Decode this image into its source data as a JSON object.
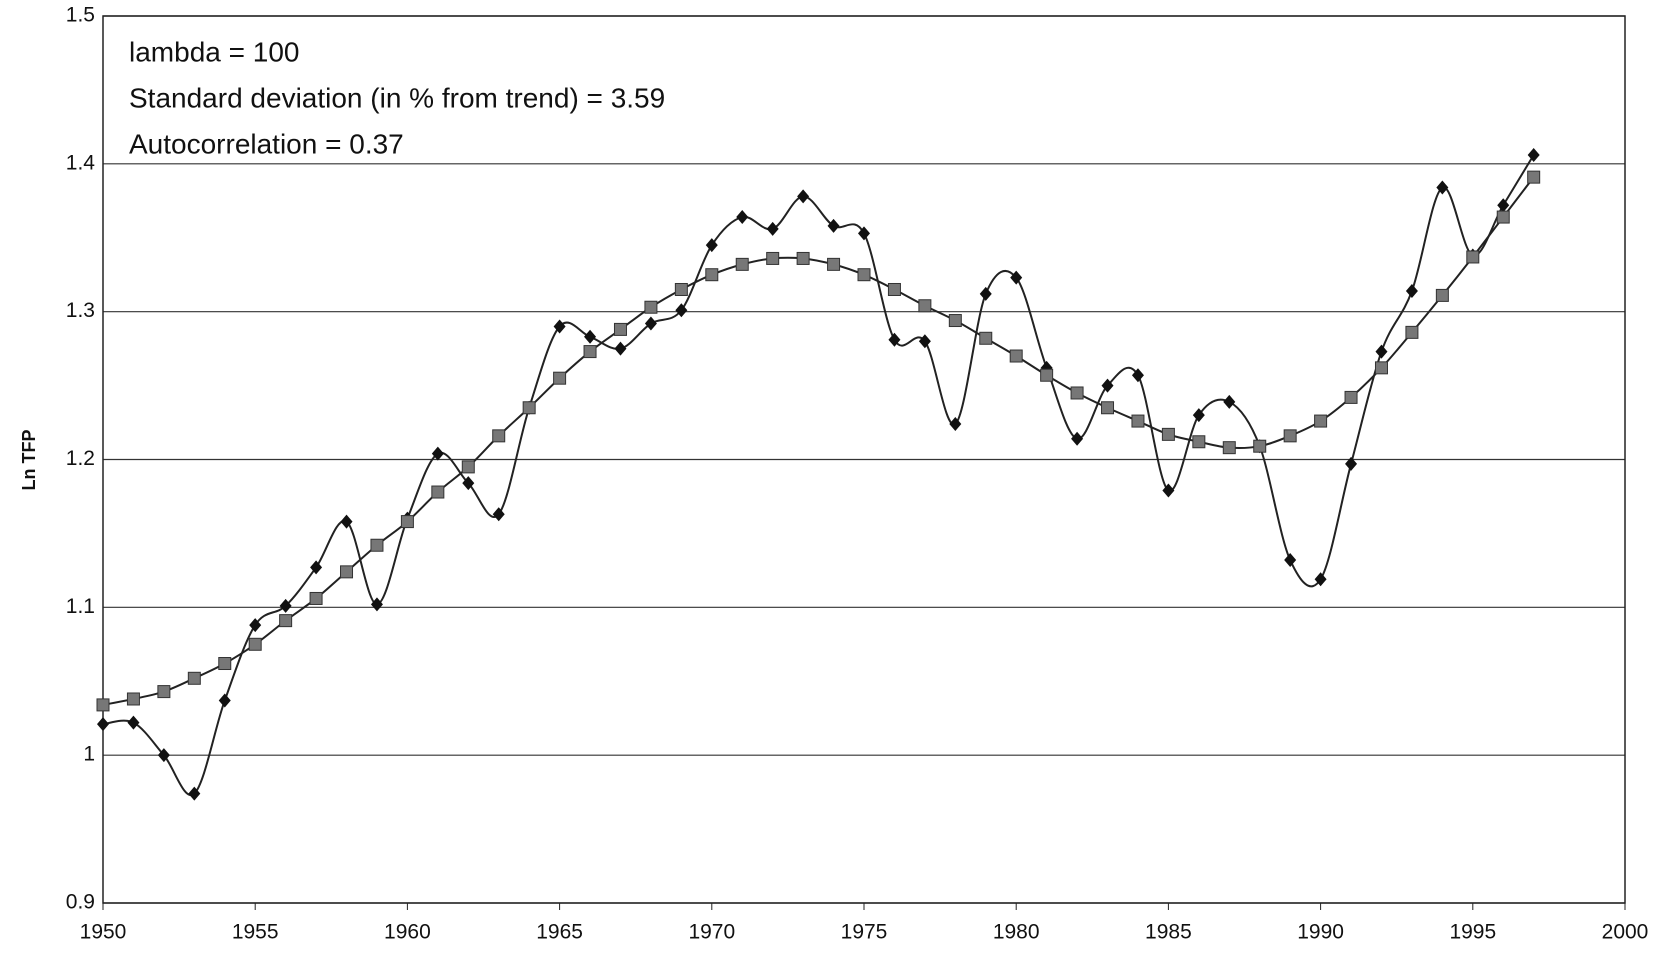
{
  "chart_data": {
    "type": "line",
    "annotations": [
      "lambda = 100",
      "Standard deviation (in % from trend) = 3.59",
      "Autocorrelation = 0.37"
    ],
    "y_label": "Ln TFP",
    "x": [
      1950,
      1951,
      1952,
      1953,
      1954,
      1955,
      1956,
      1957,
      1958,
      1959,
      1960,
      1961,
      1962,
      1963,
      1964,
      1965,
      1966,
      1967,
      1968,
      1969,
      1970,
      1971,
      1972,
      1973,
      1974,
      1975,
      1976,
      1977,
      1978,
      1979,
      1980,
      1981,
      1982,
      1983,
      1984,
      1985,
      1986,
      1987,
      1988,
      1989,
      1990,
      1991,
      1992,
      1993,
      1994,
      1995,
      1996,
      1997
    ],
    "series": [
      {
        "color": "#111111",
        "marker": "diamond",
        "values": [
          1.021,
          1.022,
          1.0,
          0.974,
          1.037,
          1.088,
          1.101,
          1.127,
          1.158,
          1.102,
          1.16,
          1.204,
          1.184,
          1.163,
          1.235,
          1.29,
          1.283,
          1.275,
          1.292,
          1.301,
          1.345,
          1.364,
          1.356,
          1.378,
          1.358,
          1.353,
          1.281,
          1.28,
          1.224,
          1.312,
          1.323,
          1.262,
          1.214,
          1.25,
          1.257,
          1.179,
          1.23,
          1.239,
          1.209,
          1.132,
          1.119,
          1.197,
          1.273,
          1.314,
          1.384,
          1.338,
          1.372,
          1.406
        ]
      },
      {
        "color": "#777777",
        "marker": "square",
        "values": [
          1.034,
          1.038,
          1.043,
          1.052,
          1.062,
          1.075,
          1.091,
          1.106,
          1.124,
          1.142,
          1.158,
          1.178,
          1.195,
          1.216,
          1.235,
          1.255,
          1.273,
          1.288,
          1.303,
          1.315,
          1.325,
          1.332,
          1.336,
          1.336,
          1.332,
          1.325,
          1.315,
          1.304,
          1.294,
          1.282,
          1.27,
          1.257,
          1.245,
          1.235,
          1.226,
          1.217,
          1.212,
          1.208,
          1.209,
          1.216,
          1.226,
          1.242,
          1.262,
          1.286,
          1.311,
          1.337,
          1.364,
          1.391
        ]
      }
    ],
    "xlim": [
      1950,
      2000
    ],
    "xticks": [
      1950,
      1955,
      1960,
      1965,
      1970,
      1975,
      1980,
      1985,
      1990,
      1995,
      2000
    ],
    "ylim": [
      0.9,
      1.5
    ],
    "yticks": [
      0.9,
      1,
      1.1,
      1.2,
      1.3,
      1.4,
      1.5
    ],
    "grid": true
  }
}
